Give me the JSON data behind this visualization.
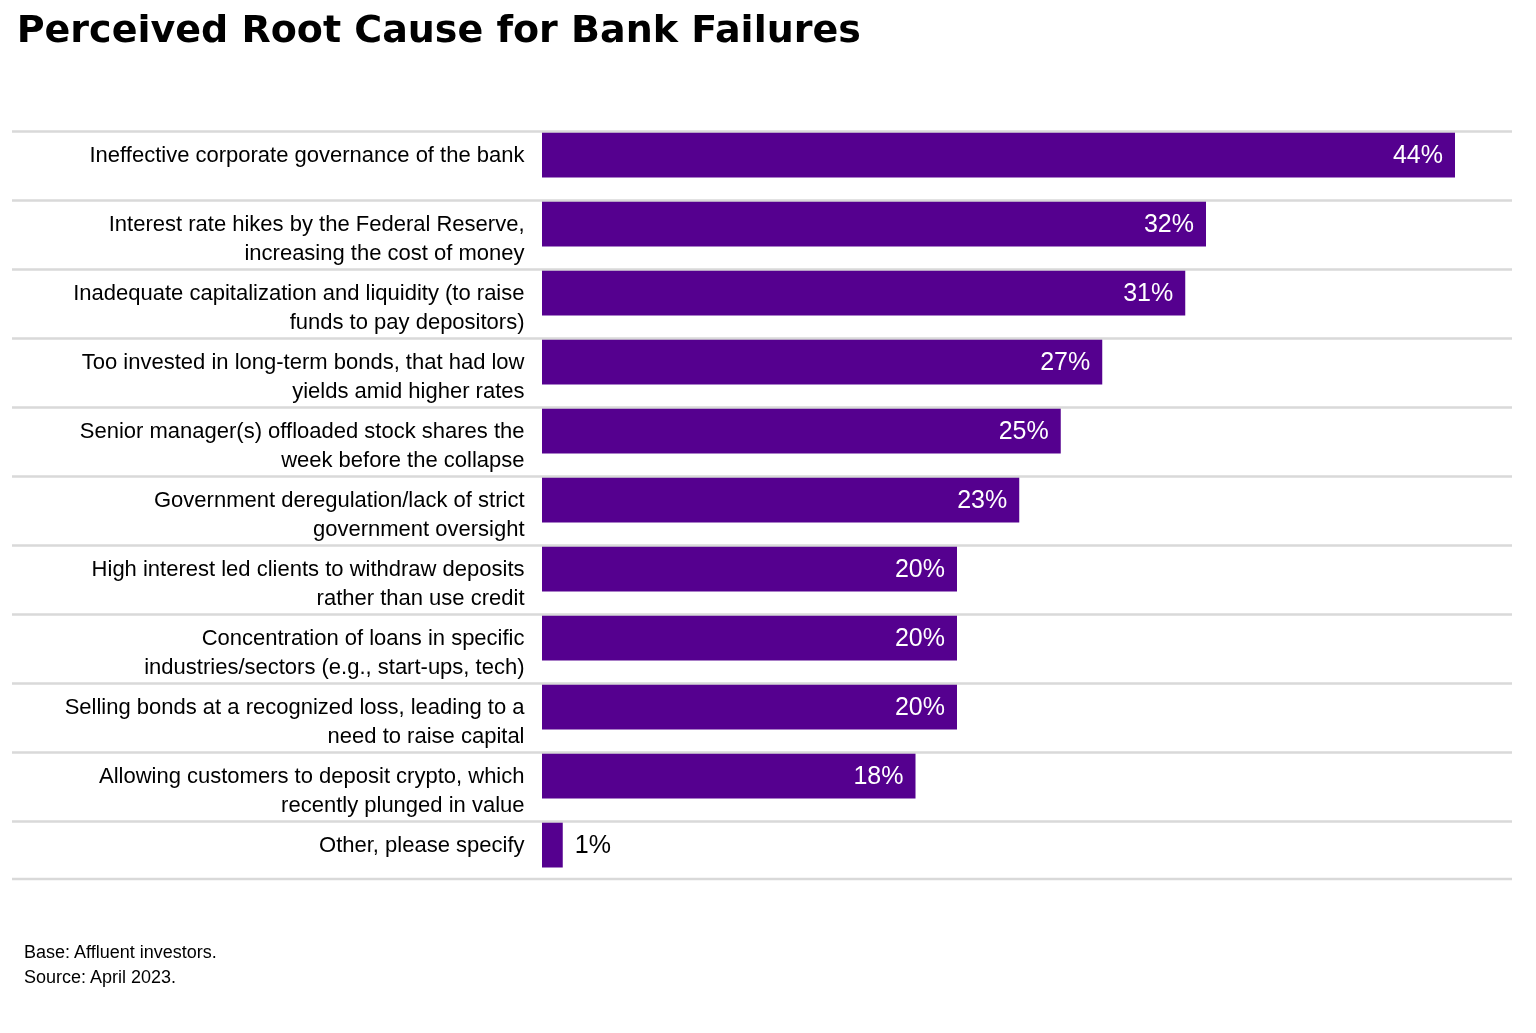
{
  "chart_data": {
    "type": "bar",
    "orientation": "horizontal",
    "title": "Perceived Root Cause for Bank Failures",
    "categories": [
      "Ineffective corporate governance of the bank",
      "Interest rate hikes by the Federal Reserve,\nincreasing the cost of money",
      "Inadequate capitalization and liquidity (to raise\nfunds to pay depositors)",
      "Too invested in long-term bonds, that had low\nyields amid higher rates",
      "Senior manager(s) offloaded stock shares the\nweek before the collapse",
      "Government deregulation/lack of strict\ngovernment oversight",
      "High interest led clients to withdraw deposits\nrather than use credit",
      "Concentration of loans in specific\nindustries/sectors (e.g., start-ups, tech)",
      "Selling bonds at a recognized loss, leading to a\nneed to raise capital",
      "Allowing customers to deposit crypto, which\nrecently plunged in value",
      "Other, please specify"
    ],
    "values": [
      44,
      32,
      31,
      27,
      25,
      23,
      20,
      20,
      20,
      18,
      1
    ],
    "value_labels": [
      "44%",
      "32%",
      "31%",
      "27%",
      "25%",
      "23%",
      "20%",
      "20%",
      "20%",
      "18%",
      "1%"
    ],
    "color": "#55008f",
    "grid": "y",
    "tick_labels": "y",
    "annotations": [
      "Base: Affluent investors.",
      "Source: April 2023."
    ]
  }
}
